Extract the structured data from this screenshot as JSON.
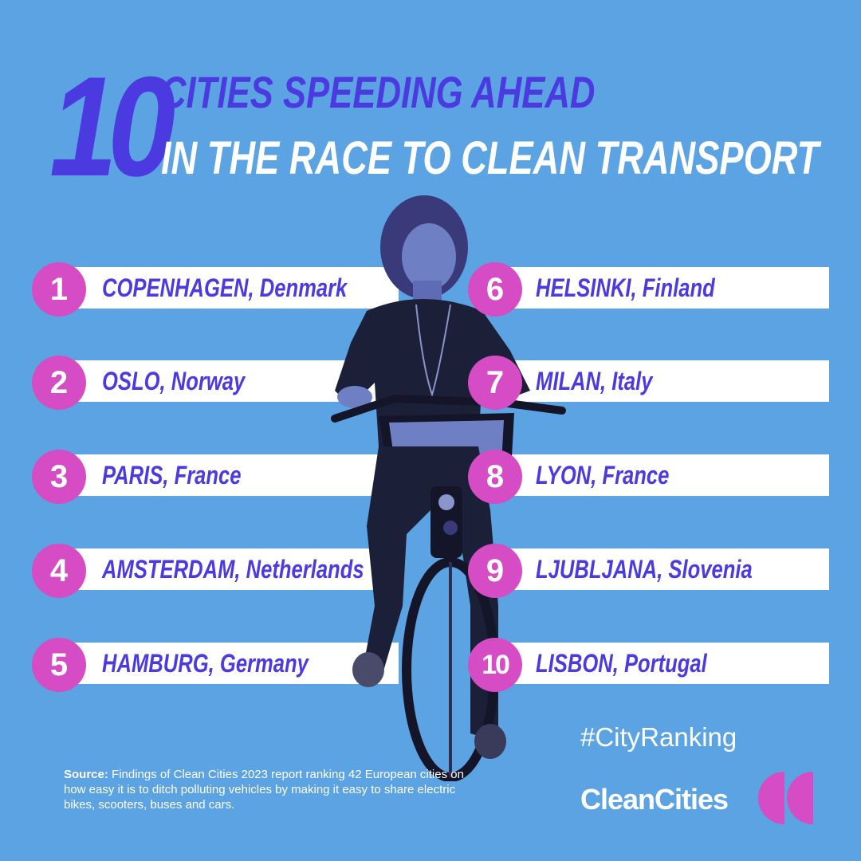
{
  "header": {
    "number": "10",
    "line1": "CITIES SPEEDING AHEAD",
    "line2": "IN THE RACE TO CLEAN TRANSPORT"
  },
  "ranking": [
    {
      "rank": "1",
      "label": "COPENHAGEN, Denmark"
    },
    {
      "rank": "2",
      "label": "OSLO, Norway"
    },
    {
      "rank": "3",
      "label": "PARIS, France"
    },
    {
      "rank": "4",
      "label": "AMSTERDAM, Netherlands"
    },
    {
      "rank": "5",
      "label": "HAMBURG, Germany"
    },
    {
      "rank": "6",
      "label": "HELSINKI, Finland"
    },
    {
      "rank": "7",
      "label": "MILAN, Italy"
    },
    {
      "rank": "8",
      "label": "LYON, France"
    },
    {
      "rank": "9",
      "label": "LJUBLJANA, Slovenia"
    },
    {
      "rank": "10",
      "label": "LISBON, Portugal"
    }
  ],
  "hashtag": "#CityRanking",
  "source": {
    "label": "Source:",
    "text": "Findings of Clean Cities 2023 report ranking 42 European cities on how easy it is to ditch polluting vehicles by making it easy to share electric bikes, scooters, buses and cars."
  },
  "brand": {
    "name": "CleanCities"
  },
  "colors": {
    "background": "#5ba3e2",
    "accent_purple": "#4b3ae0",
    "badge_pink": "#d54cc4",
    "bar_white": "#ffffff"
  }
}
